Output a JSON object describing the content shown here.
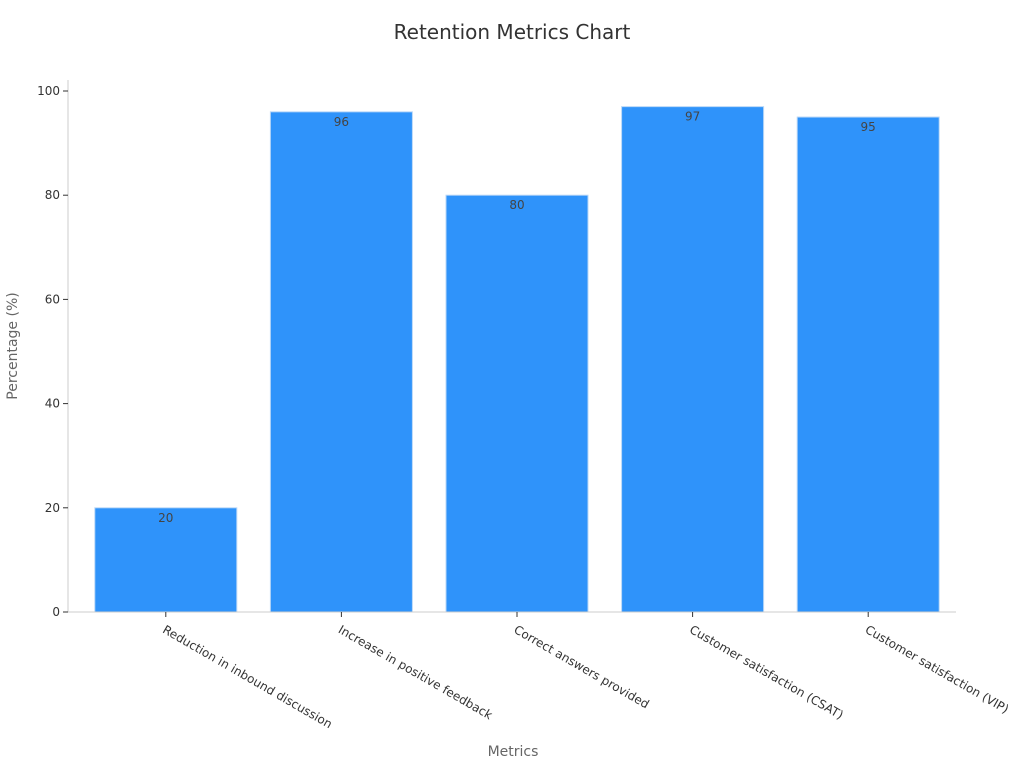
{
  "chart_data": {
    "type": "bar",
    "title": "Retention Metrics Chart",
    "xlabel": "Metrics",
    "ylabel": "Percentage (%)",
    "categories": [
      "Reduction in inbound discussion",
      "Increase in positive feedback",
      "Correct answers provided",
      "Customer satisfaction (CSAT)",
      "Customer satisfaction (VIP)"
    ],
    "values": [
      20,
      96,
      80,
      97,
      95
    ],
    "yticks": [
      0,
      20,
      40,
      60,
      80,
      100
    ],
    "ylim": [
      0,
      100
    ],
    "grid": false,
    "legend": "none",
    "bar_color": "#2f93fa",
    "bar_edge_color": "#b9d7f7",
    "axis_color": "#cccccc"
  }
}
